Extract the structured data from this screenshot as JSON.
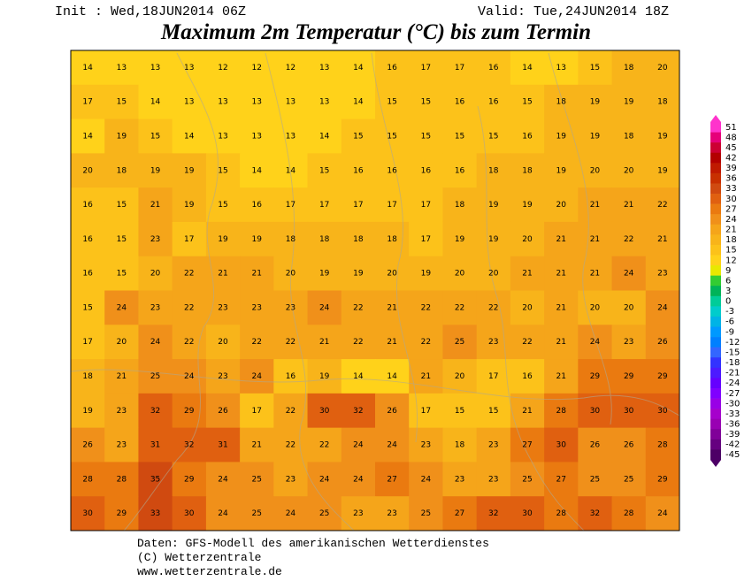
{
  "header": {
    "init": "Init : Wed,18JUN2014 06Z",
    "valid": "Valid: Tue,24JUN2014 18Z",
    "title": "Maximum 2m Temperatur (°C) bis zum Termin"
  },
  "footer": {
    "source": "Daten: GFS-Modell des amerikanischen Wetterdienstes",
    "copyright": "(C) Wetterzentrale",
    "url": "www.wetterzentrale.de"
  },
  "legend": {
    "values": [
      51,
      48,
      45,
      42,
      39,
      36,
      33,
      30,
      27,
      24,
      21,
      18,
      15,
      12,
      9,
      6,
      3,
      0,
      -3,
      -6,
      -9,
      -12,
      -15,
      -18,
      -21,
      -24,
      -27,
      -30,
      -33,
      -36,
      -39,
      -42,
      -45
    ],
    "colors": [
      "#ff33cc",
      "#e6007a",
      "#cc0033",
      "#b30000",
      "#c01a00",
      "#c83000",
      "#d04a10",
      "#e06010",
      "#ea7a10",
      "#f0901a",
      "#f5a51a",
      "#f8b41a",
      "#fcc21a",
      "#ffd21a",
      "#e8e800",
      "#33cc33",
      "#00b359",
      "#00cc99",
      "#00cccc",
      "#00b3e6",
      "#0099ff",
      "#0080ff",
      "#3366ff",
      "#3333ff",
      "#4d1aff",
      "#6600ff",
      "#8000ff",
      "#9900e6",
      "#a600cc",
      "#9900b3",
      "#800099",
      "#660080",
      "#4d0066"
    ]
  },
  "map": {
    "grid": [
      [
        14,
        13,
        13,
        13,
        12,
        12,
        12,
        13,
        14,
        16,
        17,
        17,
        16,
        14,
        13,
        15,
        18,
        20
      ],
      [
        17,
        15,
        14,
        13,
        13,
        13,
        13,
        13,
        14,
        15,
        15,
        16,
        16,
        15,
        18,
        19,
        19,
        18
      ],
      [
        14,
        19,
        15,
        14,
        13,
        13,
        13,
        14,
        15,
        15,
        15,
        15,
        15,
        16,
        19,
        19,
        18,
        19
      ],
      [
        20,
        18,
        19,
        19,
        15,
        14,
        14,
        15,
        16,
        16,
        16,
        16,
        18,
        18,
        19,
        20,
        20,
        19
      ],
      [
        16,
        15,
        21,
        19,
        15,
        16,
        17,
        17,
        17,
        17,
        17,
        18,
        19,
        19,
        20,
        21,
        21,
        22
      ],
      [
        16,
        15,
        23,
        17,
        19,
        19,
        18,
        18,
        18,
        18,
        17,
        19,
        19,
        20,
        21,
        21,
        22,
        21
      ],
      [
        16,
        15,
        20,
        22,
        21,
        21,
        20,
        19,
        19,
        20,
        19,
        20,
        20,
        21,
        21,
        21,
        24,
        23
      ],
      [
        15,
        24,
        23,
        22,
        23,
        23,
        23,
        24,
        22,
        21,
        22,
        22,
        22,
        20,
        21,
        20,
        20,
        24
      ],
      [
        17,
        20,
        24,
        22,
        20,
        22,
        22,
        21,
        22,
        21,
        22,
        25,
        23,
        22,
        21,
        24,
        23,
        26
      ],
      [
        18,
        21,
        25,
        24,
        23,
        24,
        16,
        19,
        14,
        14,
        21,
        20,
        17,
        16,
        21,
        29,
        29,
        29
      ],
      [
        19,
        23,
        32,
        29,
        26,
        17,
        22,
        30,
        32,
        26,
        17,
        15,
        15,
        21,
        28,
        30,
        30,
        30
      ],
      [
        26,
        23,
        31,
        32,
        31,
        21,
        22,
        22,
        24,
        24,
        23,
        18,
        23,
        27,
        30,
        26,
        26,
        28
      ],
      [
        28,
        28,
        35,
        29,
        24,
        25,
        23,
        24,
        24,
        27,
        24,
        23,
        23,
        25,
        27,
        25,
        25,
        29
      ],
      [
        30,
        29,
        33,
        30,
        24,
        25,
        24,
        25,
        23,
        23,
        25,
        27,
        32,
        30,
        28,
        32,
        28,
        24
      ]
    ]
  }
}
